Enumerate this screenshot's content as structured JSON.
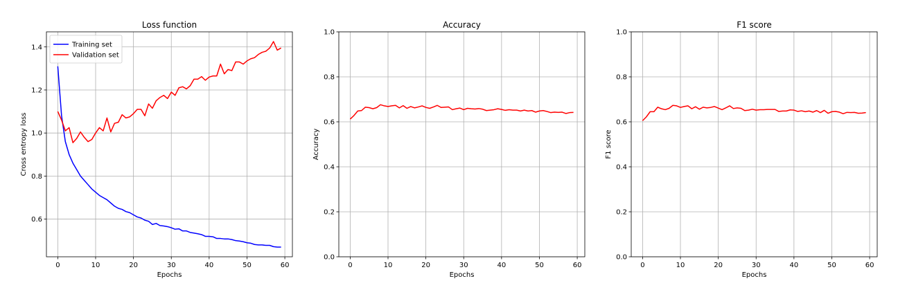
{
  "chart_data": [
    {
      "type": "line",
      "title": "Loss function",
      "xlabel": "Epochs",
      "ylabel": "Cross entropy loss",
      "xlim": [
        -3,
        62
      ],
      "ylim": [
        0.425,
        1.47
      ],
      "xticks": [
        0,
        10,
        20,
        30,
        40,
        50,
        60
      ],
      "xtick_labels": [
        "0",
        "10",
        "20",
        "30",
        "40",
        "50",
        "60"
      ],
      "yticks": [
        0.6,
        0.8,
        1.0,
        1.2,
        1.4
      ],
      "ytick_labels": [
        "0.6",
        "0.8",
        "1.0",
        "1.2",
        "1.4"
      ],
      "grid": true,
      "legend": "top-left",
      "series": [
        {
          "name": "Training set",
          "color": "#0000ff",
          "values": [
            1.31,
            1.08,
            0.96,
            0.9,
            0.86,
            0.83,
            0.8,
            0.78,
            0.76,
            0.74,
            0.725,
            0.71,
            0.7,
            0.69,
            0.675,
            0.66,
            0.65,
            0.645,
            0.635,
            0.63,
            0.62,
            0.61,
            0.605,
            0.595,
            0.59,
            0.575,
            0.58,
            0.57,
            0.568,
            0.565,
            0.56,
            0.553,
            0.555,
            0.545,
            0.545,
            0.538,
            0.535,
            0.532,
            0.528,
            0.52,
            0.52,
            0.518,
            0.51,
            0.51,
            0.508,
            0.508,
            0.505,
            0.5,
            0.498,
            0.495,
            0.49,
            0.488,
            0.482,
            0.48,
            0.48,
            0.478,
            0.478,
            0.472,
            0.47,
            0.47
          ]
        },
        {
          "name": "Validation set",
          "color": "#ff0000",
          "values": [
            1.1,
            1.06,
            1.01,
            1.025,
            0.955,
            0.975,
            1.005,
            0.98,
            0.96,
            0.97,
            1.0,
            1.025,
            1.01,
            1.07,
            1.005,
            1.045,
            1.05,
            1.085,
            1.07,
            1.075,
            1.09,
            1.11,
            1.11,
            1.08,
            1.135,
            1.115,
            1.15,
            1.165,
            1.175,
            1.16,
            1.19,
            1.175,
            1.21,
            1.215,
            1.205,
            1.22,
            1.25,
            1.25,
            1.262,
            1.245,
            1.26,
            1.265,
            1.265,
            1.32,
            1.275,
            1.295,
            1.29,
            1.33,
            1.33,
            1.32,
            1.335,
            1.345,
            1.35,
            1.365,
            1.375,
            1.38,
            1.395,
            1.425,
            1.385,
            1.395
          ]
        }
      ]
    },
    {
      "type": "line",
      "title": "Accuracy",
      "xlabel": "Epochs",
      "ylabel": "Accuracy",
      "xlim": [
        -3,
        62
      ],
      "ylim": [
        0.0,
        1.0
      ],
      "xticks": [
        0,
        10,
        20,
        30,
        40,
        50,
        60
      ],
      "xtick_labels": [
        "0",
        "10",
        "20",
        "30",
        "40",
        "50",
        "60"
      ],
      "yticks": [
        0.0,
        0.2,
        0.4,
        0.6,
        0.8,
        1.0
      ],
      "ytick_labels": [
        "0.0",
        "0.2",
        "0.4",
        "0.6",
        "0.8",
        "1.0"
      ],
      "grid": true,
      "series": [
        {
          "color": "#ff0000",
          "values": [
            0.612,
            0.628,
            0.648,
            0.65,
            0.665,
            0.663,
            0.658,
            0.663,
            0.676,
            0.671,
            0.668,
            0.671,
            0.673,
            0.662,
            0.672,
            0.66,
            0.668,
            0.662,
            0.666,
            0.671,
            0.664,
            0.66,
            0.666,
            0.673,
            0.664,
            0.665,
            0.666,
            0.654,
            0.658,
            0.661,
            0.654,
            0.66,
            0.658,
            0.657,
            0.659,
            0.656,
            0.65,
            0.652,
            0.654,
            0.658,
            0.655,
            0.651,
            0.654,
            0.652,
            0.652,
            0.648,
            0.652,
            0.648,
            0.65,
            0.643,
            0.648,
            0.65,
            0.646,
            0.641,
            0.643,
            0.642,
            0.643,
            0.637,
            0.641,
            0.642
          ]
        }
      ]
    },
    {
      "type": "line",
      "title": "F1 score",
      "xlabel": "Epochs",
      "ylabel": "F1 score",
      "xlim": [
        -3,
        62
      ],
      "ylim": [
        0.0,
        1.0
      ],
      "xticks": [
        0,
        10,
        20,
        30,
        40,
        50,
        60
      ],
      "xtick_labels": [
        "0",
        "10",
        "20",
        "30",
        "40",
        "50",
        "60"
      ],
      "yticks": [
        0.0,
        0.2,
        0.4,
        0.6,
        0.8,
        1.0
      ],
      "ytick_labels": [
        "0.0",
        "0.2",
        "0.4",
        "0.6",
        "0.8",
        "1.0"
      ],
      "grid": true,
      "series": [
        {
          "color": "#ff0000",
          "values": [
            0.605,
            0.622,
            0.645,
            0.645,
            0.665,
            0.658,
            0.654,
            0.66,
            0.673,
            0.671,
            0.664,
            0.668,
            0.671,
            0.658,
            0.667,
            0.656,
            0.665,
            0.662,
            0.664,
            0.668,
            0.661,
            0.654,
            0.662,
            0.671,
            0.659,
            0.662,
            0.66,
            0.65,
            0.652,
            0.656,
            0.652,
            0.654,
            0.654,
            0.655,
            0.655,
            0.655,
            0.646,
            0.648,
            0.648,
            0.653,
            0.652,
            0.646,
            0.649,
            0.645,
            0.648,
            0.643,
            0.65,
            0.641,
            0.651,
            0.638,
            0.645,
            0.646,
            0.643,
            0.636,
            0.642,
            0.641,
            0.642,
            0.638,
            0.639,
            0.641
          ]
        }
      ]
    }
  ]
}
